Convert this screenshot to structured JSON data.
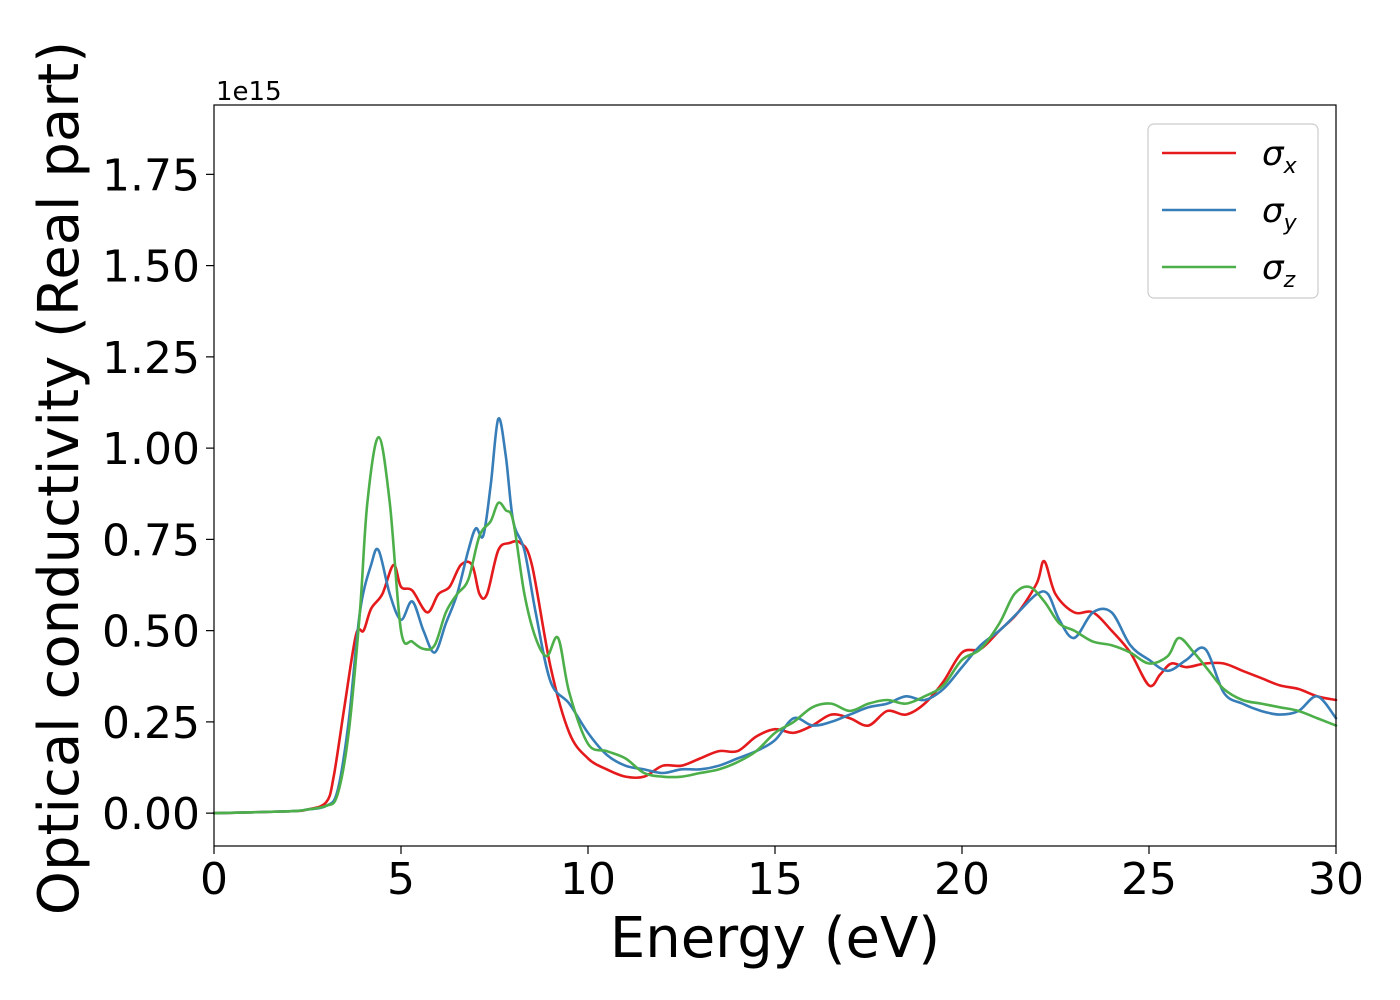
{
  "chart_data": {
    "type": "line",
    "title": "",
    "xlabel": "Energy (eV)",
    "ylabel": "Optical conductivity (Real part)",
    "y_offset_label": "1e15",
    "xlim": [
      0,
      30
    ],
    "ylim": [
      -0.09,
      1.94
    ],
    "xticks": [
      0,
      5,
      10,
      15,
      20,
      25,
      30
    ],
    "xtick_labels": [
      "0",
      "5",
      "10",
      "15",
      "20",
      "25",
      "30"
    ],
    "yticks": [
      0.0,
      0.25,
      0.5,
      0.75,
      1.0,
      1.25,
      1.5,
      1.75
    ],
    "ytick_labels": [
      "0.00",
      "0.25",
      "0.50",
      "0.75",
      "1.00",
      "1.25",
      "1.50",
      "1.75"
    ],
    "grid": false,
    "legend_position": "top-right",
    "series": [
      {
        "name": "σx",
        "legend_main": "σ",
        "legend_sub": "x",
        "color": "#e41a1c",
        "x": [
          0,
          2,
          2.5,
          3,
          3.2,
          3.5,
          3.8,
          4.0,
          4.2,
          4.5,
          4.8,
          5.0,
          5.3,
          5.7,
          6.0,
          6.3,
          6.6,
          6.9,
          7.1,
          7.3,
          7.6,
          7.9,
          8.2,
          8.5,
          9.0,
          9.5,
          10.0,
          10.5,
          11.0,
          11.5,
          12.0,
          12.5,
          13.0,
          13.5,
          14.0,
          14.5,
          15.0,
          15.5,
          16.0,
          16.5,
          17.0,
          17.5,
          18.0,
          18.5,
          19.0,
          19.5,
          20.0,
          20.5,
          21.0,
          21.5,
          22.0,
          22.2,
          22.5,
          23.0,
          23.5,
          24.0,
          24.5,
          25.0,
          25.3,
          25.6,
          26.0,
          26.5,
          27.0,
          27.5,
          28.0,
          28.5,
          29.0,
          29.5,
          30.0
        ],
        "values": [
          0,
          0.005,
          0.01,
          0.03,
          0.1,
          0.3,
          0.49,
          0.5,
          0.56,
          0.6,
          0.68,
          0.62,
          0.61,
          0.55,
          0.6,
          0.62,
          0.68,
          0.68,
          0.6,
          0.6,
          0.72,
          0.74,
          0.74,
          0.68,
          0.4,
          0.22,
          0.15,
          0.12,
          0.1,
          0.1,
          0.13,
          0.13,
          0.15,
          0.17,
          0.17,
          0.21,
          0.23,
          0.22,
          0.24,
          0.27,
          0.26,
          0.24,
          0.28,
          0.27,
          0.3,
          0.36,
          0.44,
          0.45,
          0.5,
          0.55,
          0.63,
          0.69,
          0.6,
          0.55,
          0.55,
          0.5,
          0.44,
          0.35,
          0.38,
          0.41,
          0.4,
          0.41,
          0.41,
          0.39,
          0.37,
          0.35,
          0.34,
          0.32,
          0.31
        ]
      },
      {
        "name": "σy",
        "legend_main": "σ",
        "legend_sub": "y",
        "color": "#377eb8",
        "x": [
          0,
          2,
          2.5,
          3,
          3.3,
          3.6,
          3.9,
          4.2,
          4.4,
          4.7,
          5.0,
          5.3,
          5.6,
          5.9,
          6.2,
          6.5,
          6.8,
          7.0,
          7.2,
          7.4,
          7.6,
          7.8,
          8.0,
          8.3,
          8.6,
          9.0,
          9.5,
          10.0,
          10.5,
          11.0,
          11.5,
          12.0,
          12.5,
          13.0,
          13.5,
          14.0,
          14.5,
          15.0,
          15.5,
          16.0,
          16.5,
          17.0,
          17.5,
          18.0,
          18.5,
          19.0,
          19.5,
          20.0,
          20.5,
          21.0,
          21.5,
          22.0,
          22.3,
          22.6,
          23.0,
          23.5,
          24.0,
          24.5,
          25.0,
          25.5,
          26.0,
          26.5,
          27.0,
          27.5,
          28.0,
          28.5,
          29.0,
          29.5,
          30.0
        ],
        "values": [
          0,
          0.005,
          0.01,
          0.02,
          0.06,
          0.25,
          0.55,
          0.68,
          0.72,
          0.6,
          0.53,
          0.58,
          0.5,
          0.44,
          0.52,
          0.6,
          0.72,
          0.78,
          0.76,
          0.9,
          1.08,
          0.98,
          0.8,
          0.72,
          0.55,
          0.36,
          0.3,
          0.22,
          0.16,
          0.13,
          0.12,
          0.11,
          0.12,
          0.12,
          0.13,
          0.15,
          0.17,
          0.2,
          0.26,
          0.24,
          0.25,
          0.27,
          0.29,
          0.3,
          0.32,
          0.31,
          0.34,
          0.4,
          0.46,
          0.5,
          0.55,
          0.6,
          0.6,
          0.53,
          0.48,
          0.55,
          0.55,
          0.46,
          0.42,
          0.39,
          0.42,
          0.45,
          0.33,
          0.3,
          0.28,
          0.27,
          0.28,
          0.32,
          0.26
        ]
      },
      {
        "name": "σz",
        "legend_main": "σ",
        "legend_sub": "z",
        "color": "#4daf4a",
        "x": [
          0,
          2,
          2.5,
          3,
          3.3,
          3.6,
          3.9,
          4.1,
          4.4,
          4.7,
          5.0,
          5.3,
          5.6,
          5.9,
          6.2,
          6.5,
          6.8,
          7.1,
          7.4,
          7.6,
          7.8,
          8.0,
          8.3,
          8.6,
          8.9,
          9.2,
          9.5,
          10.0,
          10.5,
          11.0,
          11.5,
          12.0,
          12.5,
          13.0,
          13.5,
          14.0,
          14.5,
          15.0,
          15.5,
          16.0,
          16.5,
          17.0,
          17.5,
          18.0,
          18.5,
          19.0,
          19.5,
          20.0,
          20.5,
          21.0,
          21.4,
          21.8,
          22.2,
          22.6,
          23.0,
          23.5,
          24.0,
          24.5,
          25.0,
          25.5,
          25.8,
          26.2,
          26.6,
          27.0,
          27.5,
          28.0,
          28.5,
          29.0,
          29.5,
          30.0
        ],
        "values": [
          0,
          0.005,
          0.01,
          0.02,
          0.05,
          0.22,
          0.55,
          0.85,
          1.03,
          0.85,
          0.5,
          0.47,
          0.45,
          0.46,
          0.55,
          0.6,
          0.64,
          0.76,
          0.8,
          0.85,
          0.83,
          0.8,
          0.6,
          0.48,
          0.43,
          0.48,
          0.33,
          0.19,
          0.17,
          0.15,
          0.11,
          0.1,
          0.1,
          0.11,
          0.12,
          0.14,
          0.17,
          0.22,
          0.25,
          0.29,
          0.3,
          0.28,
          0.3,
          0.31,
          0.3,
          0.32,
          0.35,
          0.42,
          0.45,
          0.52,
          0.6,
          0.62,
          0.58,
          0.52,
          0.5,
          0.47,
          0.46,
          0.44,
          0.41,
          0.43,
          0.48,
          0.44,
          0.39,
          0.34,
          0.31,
          0.3,
          0.29,
          0.28,
          0.26,
          0.24
        ]
      }
    ]
  }
}
